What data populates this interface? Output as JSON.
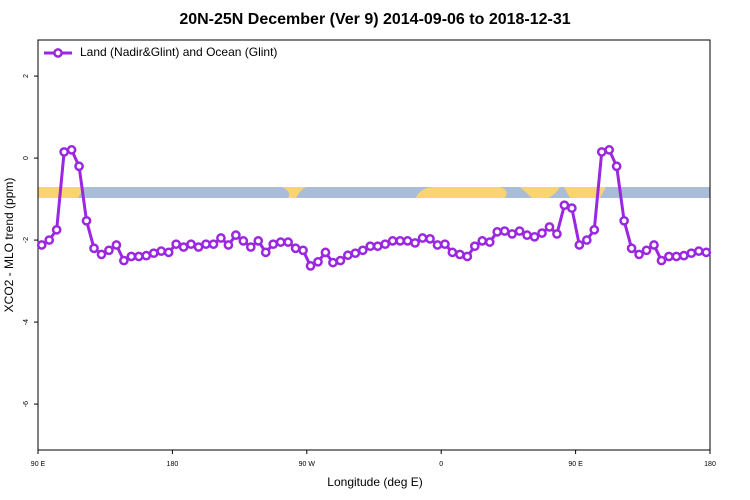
{
  "chart_data": {
    "type": "line",
    "title": "20N-25N December (Ver 9)   2014-09-06 to 2018-12-31",
    "x_label": "Longitude (deg E)",
    "y_label": "XCO2 - MLO trend (ppm)",
    "x": [
      92.5,
      97.5,
      102.5,
      107.5,
      112.5,
      117.5,
      122.5,
      127.5,
      132.5,
      137.5,
      142.5,
      147.5,
      152.5,
      157.5,
      162.5,
      167.5,
      172.5,
      177.5,
      182.5,
      187.5,
      192.5,
      197.5,
      202.5,
      207.5,
      212.5,
      217.5,
      222.5,
      227.5,
      232.5,
      237.5,
      242.5,
      247.5,
      252.5,
      257.5,
      262.5,
      267.5,
      272.5,
      277.5,
      282.5,
      287.5,
      292.5,
      297.5,
      302.5,
      307.5,
      312.5,
      317.5,
      322.5,
      327.5,
      332.5,
      337.5,
      342.5,
      347.5,
      352.5,
      357.5,
      362.5,
      367.5,
      372.5,
      377.5,
      382.5,
      387.5,
      392.5,
      397.5,
      402.5,
      407.5,
      412.5,
      417.5,
      422.5,
      427.5,
      432.5,
      437.5,
      442.5,
      447.5,
      452.5,
      457.5,
      462.5,
      467.5,
      472.5,
      477.5,
      482.5,
      487.5,
      492.5,
      497.5,
      502.5,
      507.5,
      512.5,
      517.5,
      522.5,
      527.5,
      532.5,
      537.5
    ],
    "series": [
      {
        "name": "Land (Nadir&Glint) and Ocean (Glint)",
        "color": "#9b27e0",
        "values": [
          -2.12,
          -2.0,
          -1.75,
          0.15,
          0.2,
          -0.2,
          -1.53,
          -2.2,
          -2.35,
          -2.25,
          -2.12,
          -2.5,
          -2.4,
          -2.4,
          -2.38,
          -2.32,
          -2.27,
          -2.3,
          -2.1,
          -2.17,
          -2.1,
          -2.17,
          -2.1,
          -2.1,
          -1.95,
          -2.12,
          -1.88,
          -2.02,
          -2.17,
          -2.02,
          -2.3,
          -2.1,
          -2.05,
          -2.05,
          -2.2,
          -2.25,
          -2.63,
          -2.53,
          -2.3,
          -2.55,
          -2.5,
          -2.37,
          -2.32,
          -2.25,
          -2.15,
          -2.15,
          -2.1,
          -2.02,
          -2.02,
          -2.02,
          -2.07,
          -1.95,
          -1.97,
          -2.12,
          -2.1,
          -2.3,
          -2.35,
          -2.4,
          -2.15,
          -2.02,
          -2.05,
          -1.8,
          -1.78,
          -1.85,
          -1.78,
          -1.88,
          -1.92,
          -1.83,
          -1.68,
          -1.85,
          -1.15,
          -1.22,
          -2.12,
          -2.0,
          -1.75,
          0.15,
          0.2,
          -0.2,
          -1.53,
          -2.2,
          -2.35,
          -2.25,
          -2.12,
          -2.5,
          -2.4,
          -2.4,
          -2.38,
          -2.32,
          -2.27,
          -2.3
        ]
      }
    ],
    "xlim": [
      90,
      540
    ],
    "xticks": [
      {
        "value": 90,
        "label": "90 E"
      },
      {
        "value": 180,
        "label": "180"
      },
      {
        "value": 270,
        "label": "90 W"
      },
      {
        "value": 360,
        "label": "0"
      },
      {
        "value": 450,
        "label": "90 E"
      },
      {
        "value": 540,
        "label": "180"
      }
    ],
    "ylim": [
      -7.12,
      2.88
    ],
    "yticks": [
      -6,
      -4,
      -2,
      0,
      2
    ],
    "legend": "top-left"
  }
}
